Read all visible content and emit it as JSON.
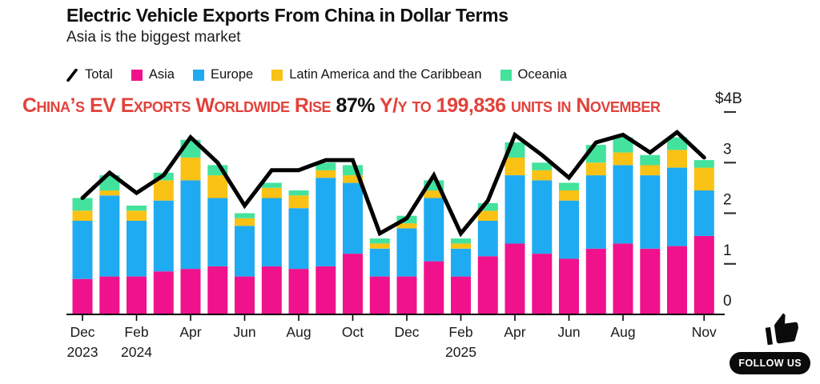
{
  "header": {
    "title": "Electric Vehicle Exports From China in Dollar Terms",
    "subtitle": "Asia is the biggest market"
  },
  "legend": [
    {
      "label": "Total",
      "type": "line",
      "color": "#000000"
    },
    {
      "label": "Asia",
      "type": "square",
      "color": "#F0128C"
    },
    {
      "label": "Europe",
      "type": "square",
      "color": "#1FABF2"
    },
    {
      "label": "Latin America and the Caribbean",
      "type": "square",
      "color": "#F9C214"
    },
    {
      "label": "Oceania",
      "type": "square",
      "color": "#43E29D"
    }
  ],
  "overlay": {
    "prefix": "China’s EV Exports Worldwide Rise ",
    "highlight": "87%",
    "suffix": " Y/y to 199,836 units in November",
    "color": "#E2423B"
  },
  "badge": {
    "label": "FOLLOW US",
    "icon": "thumbs-up-icon"
  },
  "chart_data": {
    "type": "bar",
    "stacked": true,
    "title": "Electric Vehicle Exports From China in Dollar Terms",
    "unit": "$B",
    "ylim": [
      0,
      4
    ],
    "grid": false,
    "legend_position": "top",
    "categories": [
      "Dec 2023",
      "Jan 2024",
      "Feb 2024",
      "Mar 2024",
      "Apr 2024",
      "May 2024",
      "Jun 2024",
      "Jul 2024",
      "Aug 2024",
      "Sep 2024",
      "Oct 2024",
      "Nov 2024",
      "Dec 2024",
      "Jan 2025",
      "Feb 2025",
      "Mar 2025",
      "Apr 2025",
      "May 2025",
      "Jun 2025",
      "Jul 2025",
      "Aug 2025",
      "Sep 2025",
      "Oct 2025",
      "Nov 2025"
    ],
    "series": [
      {
        "name": "Asia",
        "color": "#F0128C",
        "values": [
          0.7,
          0.75,
          0.75,
          0.85,
          0.9,
          0.95,
          0.75,
          0.95,
          0.9,
          0.95,
          1.2,
          0.75,
          0.75,
          1.05,
          0.75,
          1.15,
          1.4,
          1.2,
          1.1,
          1.3,
          1.4,
          1.3,
          1.35,
          1.55
        ]
      },
      {
        "name": "Europe",
        "color": "#1FABF2",
        "values": [
          1.15,
          1.6,
          1.1,
          1.4,
          1.75,
          1.35,
          1.0,
          1.35,
          1.2,
          1.75,
          1.4,
          0.55,
          0.95,
          1.25,
          0.55,
          0.7,
          1.35,
          1.45,
          1.15,
          1.45,
          1.55,
          1.45,
          1.55,
          0.9
        ]
      },
      {
        "name": "Latin America and the Caribbean",
        "color": "#F9C214",
        "values": [
          0.2,
          0.1,
          0.2,
          0.4,
          0.45,
          0.45,
          0.15,
          0.2,
          0.25,
          0.15,
          0.15,
          0.1,
          0.1,
          0.15,
          0.1,
          0.2,
          0.35,
          0.2,
          0.2,
          0.25,
          0.25,
          0.2,
          0.35,
          0.45
        ]
      },
      {
        "name": "Oceania",
        "color": "#43E29D",
        "values": [
          0.25,
          0.3,
          0.1,
          0.15,
          0.35,
          0.2,
          0.1,
          0.1,
          0.1,
          0.15,
          0.2,
          0.1,
          0.15,
          0.2,
          0.1,
          0.15,
          0.3,
          0.15,
          0.15,
          0.35,
          0.3,
          0.2,
          0.25,
          0.15
        ]
      }
    ],
    "line_series": {
      "name": "Total",
      "color": "#000000",
      "values": [
        2.3,
        2.8,
        2.4,
        2.75,
        3.5,
        3.0,
        2.15,
        2.85,
        2.85,
        3.05,
        3.05,
        1.6,
        1.9,
        2.75,
        1.6,
        2.25,
        3.55,
        3.15,
        2.7,
        3.4,
        3.55,
        3.2,
        3.6,
        3.1
      ]
    },
    "y_ticks": [
      {
        "value": 4,
        "label": "$4B"
      },
      {
        "value": 3,
        "label": "3"
      },
      {
        "value": 2,
        "label": "2"
      },
      {
        "value": 1,
        "label": "1"
      },
      {
        "value": 0,
        "label": "0"
      }
    ],
    "x_ticks": [
      {
        "index": 0,
        "month": "Dec",
        "year": "2023"
      },
      {
        "index": 2,
        "month": "Feb",
        "year": "2024"
      },
      {
        "index": 4,
        "month": "Apr",
        "year": ""
      },
      {
        "index": 6,
        "month": "Jun",
        "year": ""
      },
      {
        "index": 8,
        "month": "Aug",
        "year": ""
      },
      {
        "index": 10,
        "month": "Oct",
        "year": ""
      },
      {
        "index": 12,
        "month": "Dec",
        "year": ""
      },
      {
        "index": 14,
        "month": "Feb",
        "year": "2025"
      },
      {
        "index": 16,
        "month": "Apr",
        "year": ""
      },
      {
        "index": 18,
        "month": "Jun",
        "year": ""
      },
      {
        "index": 20,
        "month": "Aug",
        "year": ""
      },
      {
        "index": 23,
        "month": "Nov",
        "year": ""
      }
    ]
  }
}
